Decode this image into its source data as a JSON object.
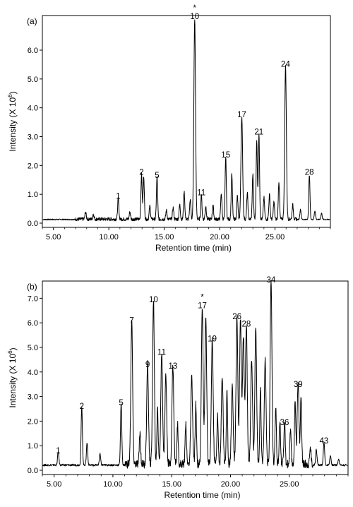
{
  "chart_data": [
    {
      "type": "line",
      "panel_label": "(a)",
      "xlabel": "Retention time (min)",
      "ylabel": "Intensity (X 10",
      "ylabel_sup": "6",
      "ylabel_end": ")",
      "xlim": [
        4.0,
        30.0
      ],
      "ylim": [
        0.0,
        7.2
      ],
      "xticks": [
        5.0,
        10.0,
        15.0,
        20.0,
        25.0
      ],
      "xtick_labels": [
        "5.00",
        "10.00",
        "15.00",
        "20.00",
        "25.00"
      ],
      "yticks": [
        0.0,
        1.0,
        2.0,
        3.0,
        4.0,
        5.0,
        6.0
      ],
      "ytick_labels": [
        "0.0",
        "1.0",
        "2.0",
        "3.0",
        "4.0",
        "5.0",
        "6.0"
      ],
      "baseline": 0.12,
      "peaks": [
        {
          "x": 7.9,
          "y": 0.25
        },
        {
          "x": 8.6,
          "y": 0.18
        },
        {
          "x": 10.85,
          "y": 0.72
        },
        {
          "x": 11.9,
          "y": 0.25
        },
        {
          "x": 12.95,
          "y": 1.55
        },
        {
          "x": 13.15,
          "y": 1.5
        },
        {
          "x": 13.7,
          "y": 0.45
        },
        {
          "x": 14.35,
          "y": 1.45
        },
        {
          "x": 15.2,
          "y": 0.3
        },
        {
          "x": 15.8,
          "y": 0.4
        },
        {
          "x": 16.4,
          "y": 0.5
        },
        {
          "x": 16.8,
          "y": 0.95
        },
        {
          "x": 17.35,
          "y": 0.7
        },
        {
          "x": 17.75,
          "y": 6.95
        },
        {
          "x": 18.35,
          "y": 0.85
        },
        {
          "x": 18.75,
          "y": 0.45
        },
        {
          "x": 19.4,
          "y": 0.5
        },
        {
          "x": 20.15,
          "y": 0.9
        },
        {
          "x": 20.55,
          "y": 2.15
        },
        {
          "x": 21.1,
          "y": 1.55
        },
        {
          "x": 21.6,
          "y": 0.8
        },
        {
          "x": 22.0,
          "y": 3.55
        },
        {
          "x": 22.5,
          "y": 0.9
        },
        {
          "x": 23.0,
          "y": 1.55
        },
        {
          "x": 23.35,
          "y": 2.7
        },
        {
          "x": 23.55,
          "y": 2.95
        },
        {
          "x": 24.0,
          "y": 0.75
        },
        {
          "x": 24.5,
          "y": 0.85
        },
        {
          "x": 24.9,
          "y": 0.6
        },
        {
          "x": 25.35,
          "y": 1.3
        },
        {
          "x": 25.95,
          "y": 5.3
        },
        {
          "x": 26.6,
          "y": 0.5
        },
        {
          "x": 27.3,
          "y": 0.35
        },
        {
          "x": 28.1,
          "y": 1.55
        },
        {
          "x": 28.6,
          "y": 0.3
        },
        {
          "x": 29.2,
          "y": 0.22
        }
      ],
      "annotations": [
        {
          "text": "1",
          "x": 10.85,
          "y": 0.72
        },
        {
          "text": "2",
          "x": 12.95,
          "y": 1.55
        },
        {
          "text": "5",
          "x": 14.35,
          "y": 1.45
        },
        {
          "text": "10",
          "x": 17.75,
          "y": 6.95
        },
        {
          "text": "11",
          "x": 18.35,
          "y": 0.85
        },
        {
          "text": "15",
          "x": 20.55,
          "y": 2.15
        },
        {
          "text": "17",
          "x": 22.0,
          "y": 3.55
        },
        {
          "text": "21",
          "x": 23.55,
          "y": 2.95
        },
        {
          "text": "24",
          "x": 25.95,
          "y": 5.3
        },
        {
          "text": "28",
          "x": 28.1,
          "y": 1.55
        }
      ],
      "star_label": {
        "text": "*",
        "x": 17.75,
        "y": 6.95
      }
    },
    {
      "type": "line",
      "panel_label": "(b)",
      "xlabel": "Retention time (min)",
      "ylabel": "Intensity (X 10",
      "ylabel_sup": "6",
      "ylabel_end": ")",
      "xlim": [
        4.0,
        30.0
      ],
      "ylim": [
        0.0,
        7.7
      ],
      "xticks": [
        5.0,
        10.0,
        15.0,
        20.0,
        25.0
      ],
      "xtick_labels": [
        "5.00",
        "10.00",
        "15.00",
        "20.00",
        "25.00"
      ],
      "yticks": [
        0.0,
        1.0,
        2.0,
        3.0,
        4.0,
        5.0,
        6.0,
        7.0
      ],
      "ytick_labels": [
        "0.0",
        "1.0",
        "2.0",
        "3.0",
        "4.0",
        "5.0",
        "6.0",
        "7.0"
      ],
      "baseline": 0.2,
      "peaks": [
        {
          "x": 5.35,
          "y": 0.55
        },
        {
          "x": 7.35,
          "y": 2.35
        },
        {
          "x": 7.8,
          "y": 0.9
        },
        {
          "x": 8.9,
          "y": 0.45
        },
        {
          "x": 10.7,
          "y": 2.5
        },
        {
          "x": 11.6,
          "y": 5.85
        },
        {
          "x": 12.3,
          "y": 1.3
        },
        {
          "x": 12.95,
          "y": 4.05
        },
        {
          "x": 13.45,
          "y": 6.7
        },
        {
          "x": 13.8,
          "y": 2.2
        },
        {
          "x": 14.15,
          "y": 4.55
        },
        {
          "x": 14.5,
          "y": 3.6
        },
        {
          "x": 15.1,
          "y": 4.0
        },
        {
          "x": 15.5,
          "y": 1.6
        },
        {
          "x": 16.2,
          "y": 1.7
        },
        {
          "x": 16.7,
          "y": 3.5
        },
        {
          "x": 17.05,
          "y": 2.4
        },
        {
          "x": 17.6,
          "y": 6.45
        },
        {
          "x": 17.9,
          "y": 6.0
        },
        {
          "x": 18.45,
          "y": 5.1
        },
        {
          "x": 18.9,
          "y": 2.0
        },
        {
          "x": 19.3,
          "y": 3.6
        },
        {
          "x": 19.7,
          "y": 2.9
        },
        {
          "x": 20.15,
          "y": 3.2
        },
        {
          "x": 20.55,
          "y": 6.0
        },
        {
          "x": 20.85,
          "y": 5.95
        },
        {
          "x": 21.1,
          "y": 5.2
        },
        {
          "x": 21.35,
          "y": 5.7
        },
        {
          "x": 21.8,
          "y": 4.3
        },
        {
          "x": 22.15,
          "y": 5.55
        },
        {
          "x": 22.55,
          "y": 3.0
        },
        {
          "x": 22.95,
          "y": 4.2
        },
        {
          "x": 23.45,
          "y": 7.5
        },
        {
          "x": 23.85,
          "y": 2.4
        },
        {
          "x": 24.2,
          "y": 1.8
        },
        {
          "x": 24.6,
          "y": 1.7
        },
        {
          "x": 25.1,
          "y": 1.35
        },
        {
          "x": 25.5,
          "y": 2.6
        },
        {
          "x": 25.75,
          "y": 3.25
        },
        {
          "x": 26.0,
          "y": 2.8
        },
        {
          "x": 26.8,
          "y": 0.7
        },
        {
          "x": 27.3,
          "y": 0.65
        },
        {
          "x": 27.95,
          "y": 0.95
        },
        {
          "x": 28.5,
          "y": 0.4
        },
        {
          "x": 29.2,
          "y": 0.25
        }
      ],
      "annotations": [
        {
          "text": "1",
          "x": 5.35,
          "y": 0.55
        },
        {
          "text": "2",
          "x": 7.35,
          "y": 2.35
        },
        {
          "text": "5",
          "x": 10.7,
          "y": 2.5
        },
        {
          "text": "7",
          "x": 11.6,
          "y": 5.85
        },
        {
          "text": "9",
          "x": 12.95,
          "y": 4.05
        },
        {
          "text": "10",
          "x": 13.45,
          "y": 6.7
        },
        {
          "text": "11",
          "x": 14.15,
          "y": 4.55
        },
        {
          "text": "13",
          "x": 15.1,
          "y": 4.0
        },
        {
          "text": "17",
          "x": 17.6,
          "y": 6.45
        },
        {
          "text": "19",
          "x": 18.45,
          "y": 5.1
        },
        {
          "text": "26",
          "x": 20.55,
          "y": 6.0
        },
        {
          "text": "28",
          "x": 21.35,
          "y": 5.7
        },
        {
          "text": "34",
          "x": 23.45,
          "y": 7.5
        },
        {
          "text": "36",
          "x": 24.6,
          "y": 1.7
        },
        {
          "text": "39",
          "x": 25.75,
          "y": 3.25
        },
        {
          "text": "43",
          "x": 27.95,
          "y": 0.95
        }
      ],
      "star_label": {
        "text": "*",
        "x": 17.6,
        "y": 6.45
      }
    }
  ]
}
